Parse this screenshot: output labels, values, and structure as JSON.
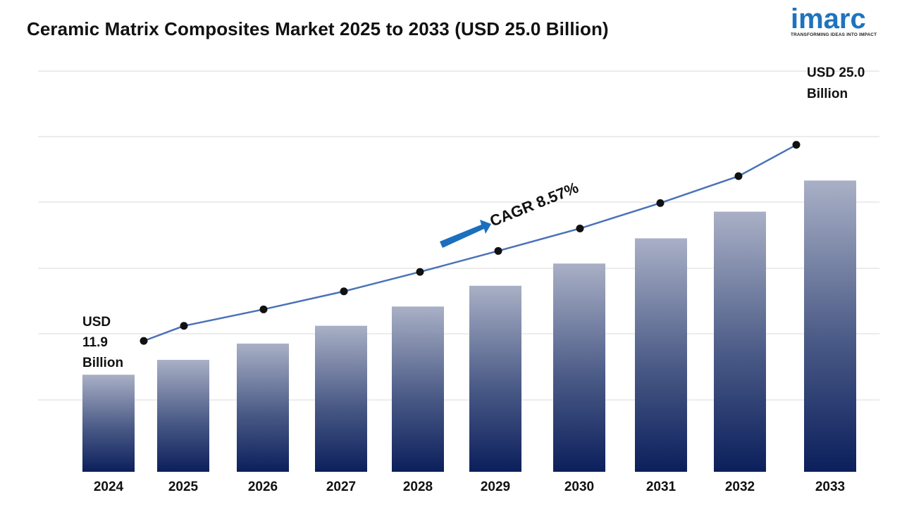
{
  "title": "Ceramic Matrix Composites Market 2025 to 2033 (USD 25.0 Billion)",
  "logo": {
    "word": "imarc",
    "tagline": "TRANSFORMING IDEAS INTO IMPACT"
  },
  "colors": {
    "bar_top": "#a9b0c6",
    "bar_bottom": "#0b1f5c",
    "line": "#4a72b8",
    "marker": "#111111",
    "arrow": "#1a6fbf",
    "grid": "#d9d9d9",
    "logo": "#1e73be"
  },
  "chart_data": {
    "type": "bar",
    "categories": [
      "2024",
      "2025",
      "2026",
      "2027",
      "2028",
      "2029",
      "2030",
      "2031",
      "2032",
      "2033"
    ],
    "values": [
      11.9,
      12.9,
      14.0,
      15.2,
      16.5,
      17.9,
      19.4,
      21.1,
      22.9,
      25.0
    ],
    "overlay_line": {
      "values": [
        11.9,
        12.9,
        14.0,
        15.2,
        16.5,
        17.9,
        19.4,
        21.1,
        22.9,
        25.0
      ]
    },
    "annotations": {
      "start_label": [
        "USD",
        "11.9",
        "Billion"
      ],
      "end_label": [
        "USD 25.0",
        "Billion"
      ],
      "cagr": "CAGR 8.57%"
    },
    "grid": true,
    "legend": "none"
  }
}
